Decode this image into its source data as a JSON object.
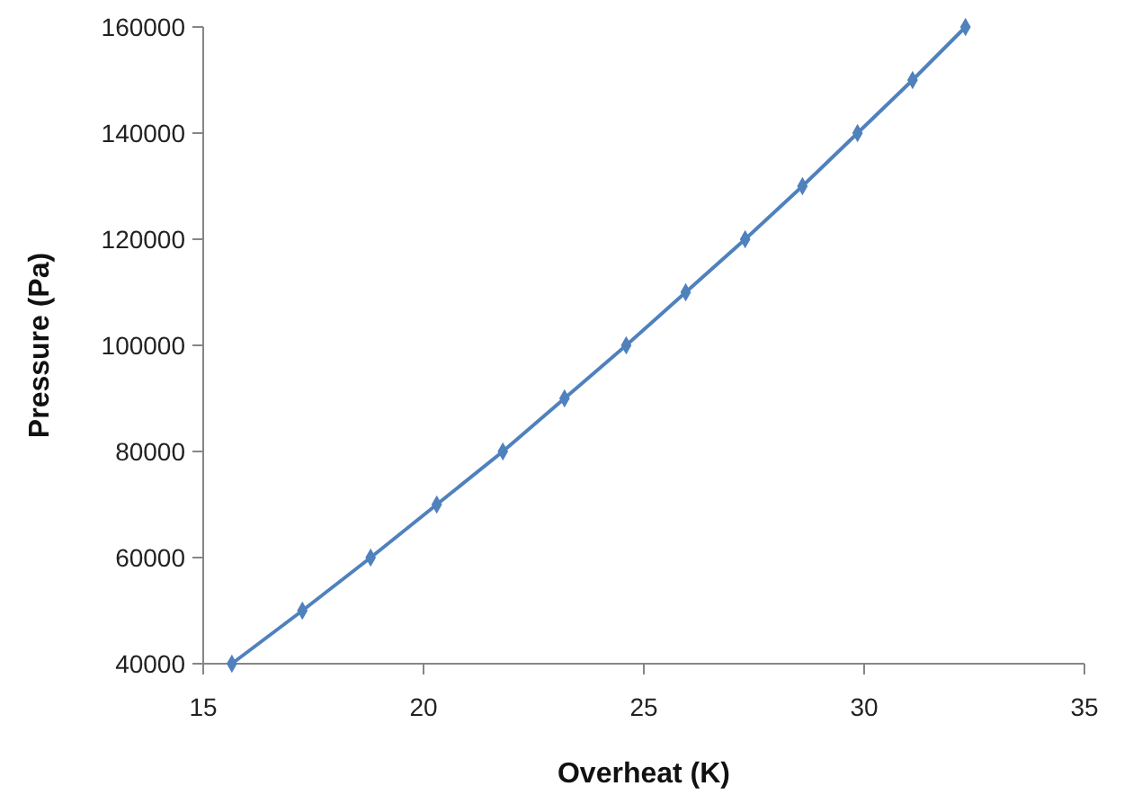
{
  "chart_data": {
    "type": "line",
    "xlabel": "Overheat (K)",
    "ylabel": "Pressure (Pa)",
    "x": [
      15.65,
      17.25,
      18.8,
      20.3,
      21.8,
      23.2,
      24.6,
      25.95,
      27.3,
      28.6,
      29.85,
      31.1,
      32.3
    ],
    "series": [
      {
        "color": "#4f81bd",
        "values": [
          40000,
          50000,
          60000,
          70000,
          80000,
          90000,
          100000,
          110000,
          120000,
          130000,
          140000,
          150000,
          160000
        ]
      }
    ],
    "xlim": [
      15,
      35
    ],
    "xticks": [
      15,
      20,
      25,
      30,
      35
    ],
    "ylim": [
      40000,
      160000
    ],
    "yticks": [
      40000,
      60000,
      80000,
      100000,
      120000,
      140000,
      160000
    ],
    "grid": false,
    "marker": "diamond",
    "line_style": "solid"
  }
}
